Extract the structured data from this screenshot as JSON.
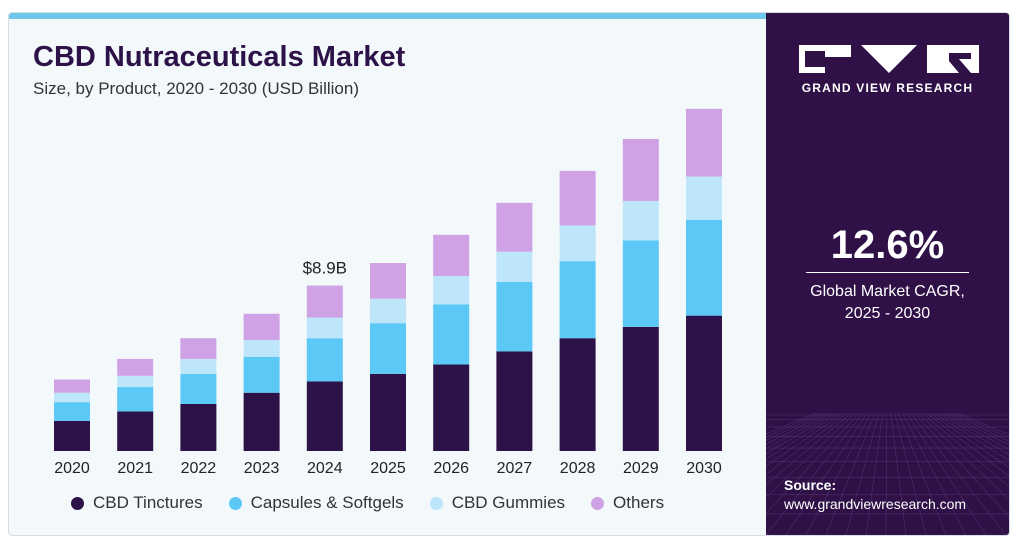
{
  "header": {
    "title": "CBD Nutraceuticals Market",
    "subtitle": "Size, by Product, 2020 - 2030 (USD Billion)"
  },
  "chart_data": {
    "type": "bar",
    "stacked": true,
    "categories": [
      "2020",
      "2021",
      "2022",
      "2023",
      "2024",
      "2025",
      "2026",
      "2027",
      "2028",
      "2029",
      "2030"
    ],
    "series": [
      {
        "name": "CBD Tinctures",
        "color": "#2c1248",
        "values": [
          1.6,
          2.1,
          2.5,
          3.1,
          3.7,
          4.1,
          4.6,
          5.3,
          6.0,
          6.6,
          7.2
        ]
      },
      {
        "name": "Capsules & Softgels",
        "color": "#5bc8f5",
        "values": [
          1.0,
          1.3,
          1.6,
          1.9,
          2.3,
          2.7,
          3.2,
          3.7,
          4.1,
          4.6,
          5.1
        ]
      },
      {
        "name": "CBD Gummies",
        "color": "#bde6fa",
        "values": [
          0.5,
          0.6,
          0.8,
          0.9,
          1.1,
          1.3,
          1.5,
          1.6,
          1.9,
          2.1,
          2.3
        ]
      },
      {
        "name": "Others",
        "color": "#cfa2e6",
        "values": [
          0.7,
          0.9,
          1.1,
          1.4,
          1.7,
          1.9,
          2.2,
          2.6,
          2.9,
          3.3,
          3.6
        ]
      }
    ],
    "annotations": [
      {
        "category": "2024",
        "text": "$8.9B"
      }
    ],
    "legend_position": "bottom",
    "grid": false
  },
  "sidebar": {
    "brand": "GRAND VIEW RESEARCH",
    "cagr_value": "12.6%",
    "cagr_label_line1": "Global Market CAGR,",
    "cagr_label_line2": "2025 - 2030",
    "source_label": "Source:",
    "source_url": "www.grandviewresearch.com",
    "colors": {
      "background": "#2f1147",
      "text": "#ffffff"
    }
  }
}
